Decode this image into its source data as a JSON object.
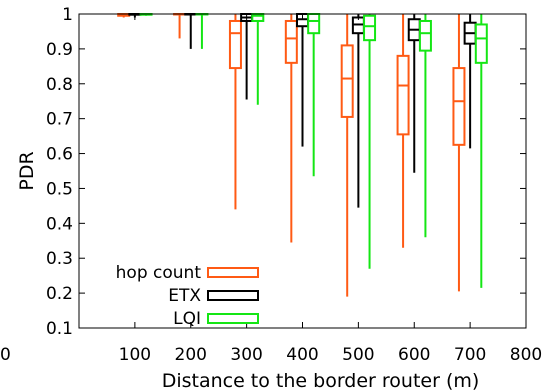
{
  "chart_data": {
    "type": "boxplot",
    "xlabel": "Distance to the border router (m)",
    "ylabel": "PDR",
    "xlim": [
      0,
      800
    ],
    "ylim": [
      0.1,
      1
    ],
    "x_ticks": [
      100,
      200,
      300,
      400,
      500,
      600,
      700,
      800
    ],
    "y_ticks": [
      0.1,
      0.2,
      0.3,
      0.4,
      0.5,
      0.6,
      0.7,
      0.8,
      0.9,
      1
    ],
    "x_tick_labels": [
      "100",
      "200",
      "300",
      "400",
      "500",
      "600",
      "700",
      "800"
    ],
    "y_tick_labels": [
      "0.1",
      "0.2",
      "0.3",
      "0.4",
      "0.5",
      "0.6",
      "0.7",
      "0.8",
      "0.9",
      "1"
    ],
    "partial_left_tick_label": "0",
    "grid": false,
    "legend_position": "bottom-left",
    "series": [
      {
        "name": "hop count",
        "color": "#ff5a14",
        "offset": -20,
        "boxes": [
          {
            "x": 100,
            "min": 0.99,
            "q1": 0.995,
            "median": 1.0,
            "q3": 1.0,
            "max": 1.0
          },
          {
            "x": 200,
            "min": 0.93,
            "q1": 1.0,
            "median": 1.0,
            "q3": 1.0,
            "max": 1.0
          },
          {
            "x": 300,
            "min": 0.44,
            "q1": 0.845,
            "median": 0.945,
            "q3": 0.98,
            "max": 1.0
          },
          {
            "x": 400,
            "min": 0.345,
            "q1": 0.86,
            "median": 0.93,
            "q3": 0.98,
            "max": 1.0
          },
          {
            "x": 500,
            "min": 0.19,
            "q1": 0.705,
            "median": 0.815,
            "q3": 0.91,
            "max": 1.0
          },
          {
            "x": 600,
            "min": 0.33,
            "q1": 0.655,
            "median": 0.795,
            "q3": 0.88,
            "max": 1.0
          },
          {
            "x": 700,
            "min": 0.205,
            "q1": 0.625,
            "median": 0.75,
            "q3": 0.845,
            "max": 1.0
          }
        ]
      },
      {
        "name": "ETX",
        "color": "#000000",
        "offset": 0,
        "boxes": [
          {
            "x": 100,
            "min": 0.99,
            "q1": 0.998,
            "median": 1.0,
            "q3": 1.0,
            "max": 1.0
          },
          {
            "x": 200,
            "min": 0.9,
            "q1": 1.0,
            "median": 1.0,
            "q3": 1.0,
            "max": 1.0
          },
          {
            "x": 300,
            "min": 0.755,
            "q1": 0.98,
            "median": 0.99,
            "q3": 1.0,
            "max": 1.0
          },
          {
            "x": 400,
            "min": 0.62,
            "q1": 0.965,
            "median": 0.985,
            "q3": 1.0,
            "max": 1.0
          },
          {
            "x": 500,
            "min": 0.445,
            "q1": 0.945,
            "median": 0.97,
            "q3": 0.99,
            "max": 1.0
          },
          {
            "x": 600,
            "min": 0.545,
            "q1": 0.925,
            "median": 0.955,
            "q3": 0.985,
            "max": 1.0
          },
          {
            "x": 700,
            "min": 0.615,
            "q1": 0.915,
            "median": 0.945,
            "q3": 0.975,
            "max": 1.0
          }
        ]
      },
      {
        "name": "LQI",
        "color": "#14e614",
        "offset": 20,
        "boxes": [
          {
            "x": 100,
            "min": 0.995,
            "q1": 0.998,
            "median": 1.0,
            "q3": 1.0,
            "max": 1.0
          },
          {
            "x": 200,
            "min": 0.9,
            "q1": 1.0,
            "median": 1.0,
            "q3": 1.0,
            "max": 1.0
          },
          {
            "x": 300,
            "min": 0.74,
            "q1": 0.98,
            "median": 0.995,
            "q3": 1.0,
            "max": 1.0
          },
          {
            "x": 400,
            "min": 0.535,
            "q1": 0.945,
            "median": 0.98,
            "q3": 1.0,
            "max": 1.0
          },
          {
            "x": 500,
            "min": 0.27,
            "q1": 0.925,
            "median": 0.965,
            "q3": 0.995,
            "max": 1.0
          },
          {
            "x": 600,
            "min": 0.36,
            "q1": 0.895,
            "median": 0.945,
            "q3": 0.98,
            "max": 1.0
          },
          {
            "x": 700,
            "min": 0.215,
            "q1": 0.86,
            "median": 0.93,
            "q3": 0.97,
            "max": 1.0
          }
        ]
      }
    ]
  }
}
